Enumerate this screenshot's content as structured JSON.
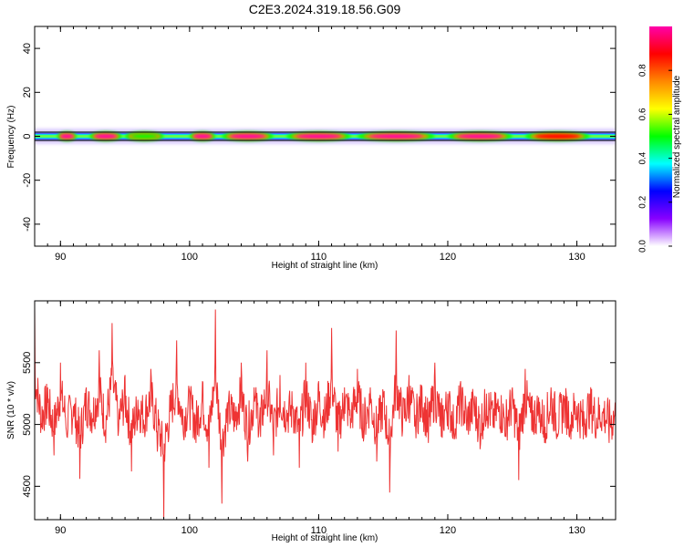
{
  "title": "C2E3.2024.319.18.56.G09",
  "chart_data": [
    {
      "type": "heatmap",
      "xlabel": "Height of straight line (km)",
      "ylabel": "Frequency (Hz)",
      "xlim": [
        88,
        133
      ],
      "ylim": [
        -50,
        50
      ],
      "x_ticks": [
        90,
        100,
        110,
        120,
        130
      ],
      "y_ticks": [
        40,
        20,
        0,
        -20,
        -40
      ],
      "x_tick_labels": [
        "90",
        "100",
        "110",
        "120",
        "130"
      ],
      "y_tick_labels": [
        "40",
        "20",
        "0",
        "-20",
        "-40"
      ],
      "center_frequency": 0,
      "blobs": [
        {
          "x": 90.5,
          "width": 1.5,
          "amplitude": 0.95
        },
        {
          "x": 93.5,
          "width": 2.5,
          "amplitude": 0.95
        },
        {
          "x": 96.5,
          "width": 3.0,
          "amplitude": 0.45
        },
        {
          "x": 101.0,
          "width": 2.0,
          "amplitude": 0.95
        },
        {
          "x": 104.5,
          "width": 4.0,
          "amplitude": 0.95
        },
        {
          "x": 110.0,
          "width": 5.0,
          "amplitude": 0.95
        },
        {
          "x": 116.0,
          "width": 6.0,
          "amplitude": 0.95
        },
        {
          "x": 122.5,
          "width": 5.0,
          "amplitude": 0.95
        },
        {
          "x": 128.5,
          "width": 5.0,
          "amplitude": 0.9
        }
      ],
      "colorbar": {
        "label": "Normalized spectral amplitude",
        "range": [
          0,
          1
        ],
        "ticks": [
          0.0,
          0.2,
          0.4,
          0.6,
          0.8
        ],
        "tick_labels": [
          "0.0",
          "0.2",
          "0.4",
          "0.6",
          "0.8"
        ],
        "colors": [
          "#ffffff",
          "#8800ff",
          "#0000ff",
          "#00ffff",
          "#00ff00",
          "#ffff00",
          "#ff8800",
          "#ff0000",
          "#ff00aa"
        ]
      }
    },
    {
      "type": "line",
      "xlabel": "Height of straight line (km)",
      "ylabel": "SNR (10 * v/v)",
      "xlim": [
        88,
        133
      ],
      "ylim": [
        4230,
        6000
      ],
      "x_ticks": [
        90,
        100,
        110,
        120,
        130
      ],
      "y_ticks": [
        4500,
        5000,
        5500
      ],
      "x_tick_labels": [
        "90",
        "100",
        "110",
        "120",
        "130"
      ],
      "y_tick_labels": [
        "4500",
        "5000",
        "5500"
      ],
      "color": "#ee3333",
      "series": [
        {
          "x": [
            88.0,
            88.5,
            89.0,
            89.5,
            90.0,
            90.5,
            91.0,
            91.5,
            92.0,
            92.5,
            93.0,
            93.5,
            94.0,
            94.5,
            95.0,
            95.5,
            96.0,
            96.5,
            97.0,
            97.5,
            98.0,
            98.5,
            99.0,
            99.5,
            100.0,
            100.5,
            101.0,
            101.5,
            102.0,
            102.5,
            103.0,
            103.5,
            104.0,
            104.5,
            105.0,
            105.5,
            106.0,
            106.5,
            107.0,
            107.5,
            108.0,
            108.5,
            109.0,
            109.5,
            110.0,
            110.5,
            111.0,
            111.5,
            112.0,
            112.5,
            113.0,
            113.5,
            114.0,
            114.5,
            115.0,
            115.5,
            116.0,
            116.5,
            117.0,
            117.5,
            118.0,
            118.5,
            119.0,
            119.5,
            120.0,
            120.5,
            121.0,
            121.5,
            122.0,
            122.5,
            123.0,
            123.5,
            124.0,
            124.5,
            125.0,
            125.5,
            126.0,
            126.5,
            127.0,
            127.5,
            128.0,
            128.5,
            129.0,
            129.5,
            130.0,
            130.5,
            131.0,
            131.5,
            132.0,
            132.5,
            133.0
          ],
          "y": [
            5950,
            5010,
            5300,
            4750,
            5500,
            4900,
            5150,
            4560,
            5300,
            5050,
            5600,
            4850,
            5820,
            4950,
            5400,
            4620,
            5200,
            5000,
            5450,
            4780,
            4240,
            5100,
            5680,
            4950,
            5250,
            4850,
            5350,
            4650,
            5930,
            4360,
            5150,
            4980,
            5500,
            4700,
            5300,
            4900,
            5600,
            4750,
            5400,
            5050,
            5150,
            4650,
            5500,
            4850,
            5350,
            4950,
            5780,
            4780,
            5300,
            5050,
            5450,
            4900,
            5300,
            4700,
            5250,
            4450,
            5760,
            4950,
            5400,
            5000,
            5300,
            4850,
            5500,
            4900,
            5250,
            4880,
            5350,
            4950,
            5200,
            4800,
            5250,
            5000,
            5150,
            4900,
            5300,
            4550,
            5450,
            4950,
            5100,
            4850,
            5300,
            4900,
            5200,
            5000,
            5150,
            4880,
            5250,
            4950,
            5100,
            4850,
            5000
          ]
        }
      ]
    }
  ]
}
